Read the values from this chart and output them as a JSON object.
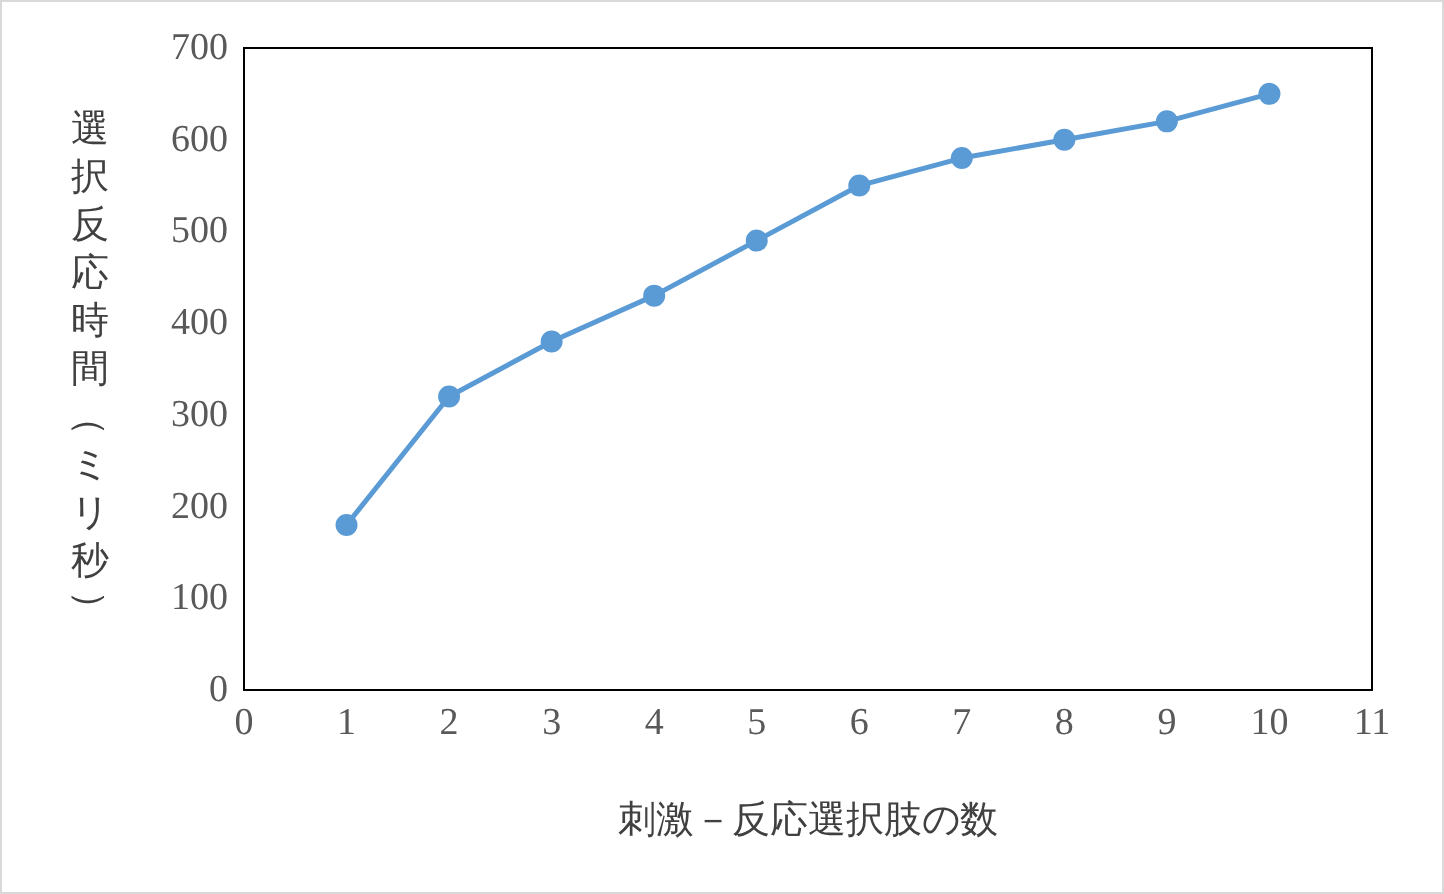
{
  "chart_data": {
    "type": "line",
    "xlabel": "刺激－反応選択肢の数",
    "ylabel": "選択反応時間（ミリ秒）",
    "x": [
      1,
      2,
      3,
      4,
      5,
      6,
      7,
      8,
      9,
      10
    ],
    "series": [
      {
        "color": "#5b9bd5",
        "values": [
          180,
          320,
          380,
          430,
          490,
          550,
          580,
          600,
          620,
          650
        ]
      }
    ],
    "xlim": [
      0,
      11
    ],
    "xticks": [
      0,
      1,
      2,
      3,
      4,
      5,
      6,
      7,
      8,
      9,
      10,
      11
    ],
    "ylim": [
      0,
      700
    ],
    "yticks": [
      0,
      100,
      200,
      300,
      400,
      500,
      600,
      700
    ],
    "marker": "circle",
    "line_style": "solid"
  }
}
